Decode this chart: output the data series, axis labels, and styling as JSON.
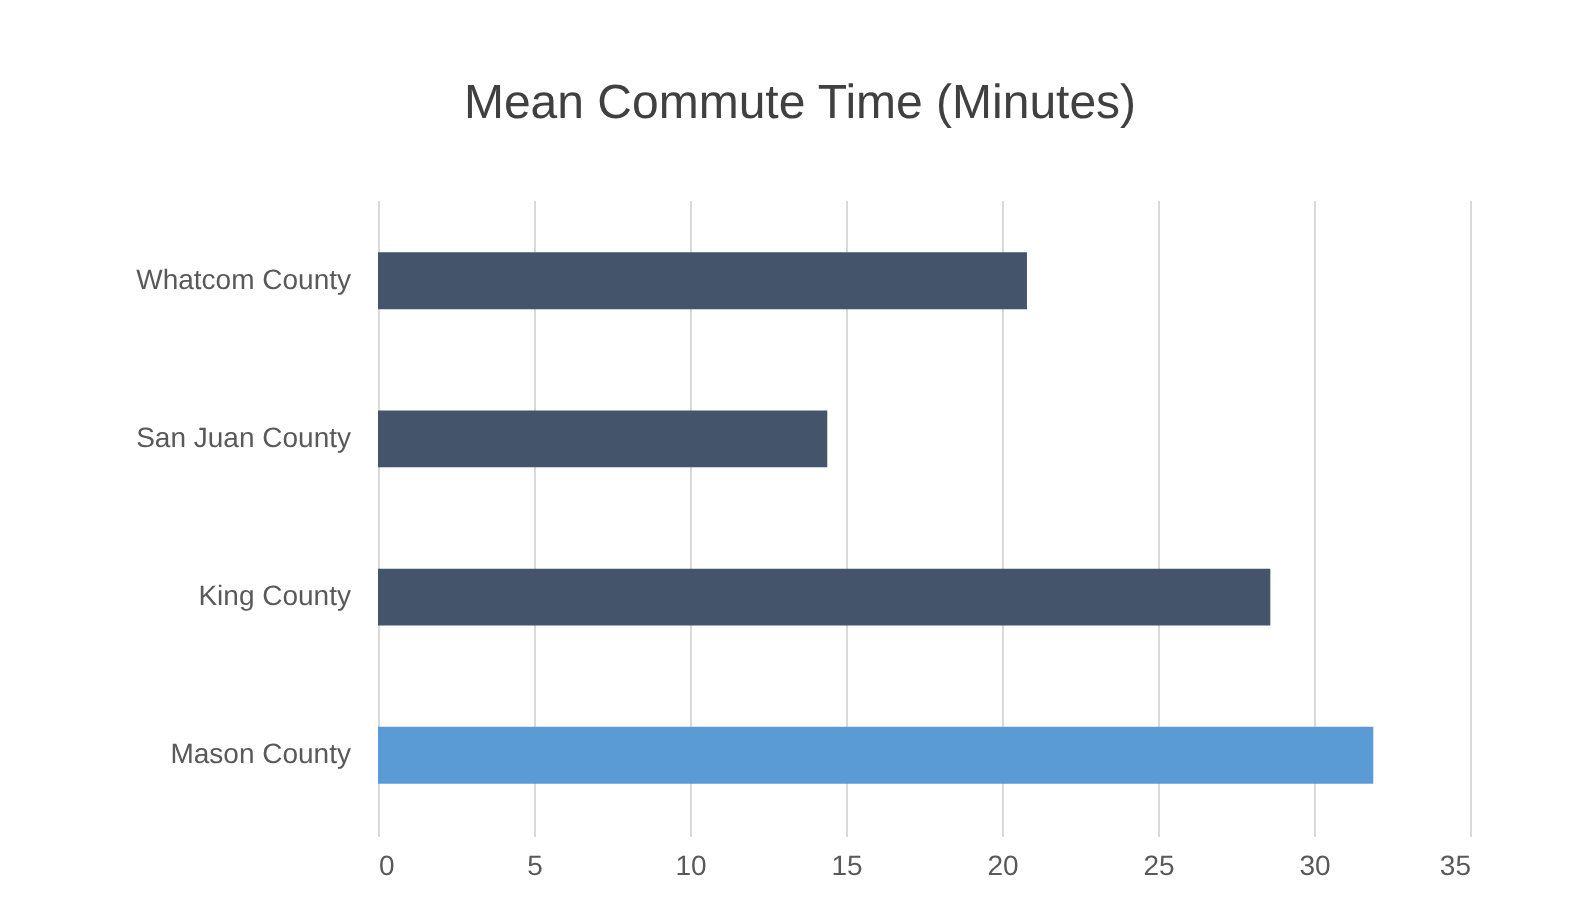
{
  "chart_data": {
    "type": "bar",
    "orientation": "horizontal",
    "title": "Mean Commute Time (Minutes)",
    "categories": [
      "Whatcom County",
      "San Juan County",
      "King County",
      "Mason County"
    ],
    "values": [
      20.8,
      14.4,
      28.6,
      31.9
    ],
    "colors": [
      "#44546a",
      "#44546a",
      "#44546a",
      "#5b9bd5"
    ],
    "xlim": [
      0,
      35
    ],
    "xticks": [
      0,
      5,
      10,
      15,
      20,
      25,
      30,
      35
    ],
    "grid": "x"
  }
}
